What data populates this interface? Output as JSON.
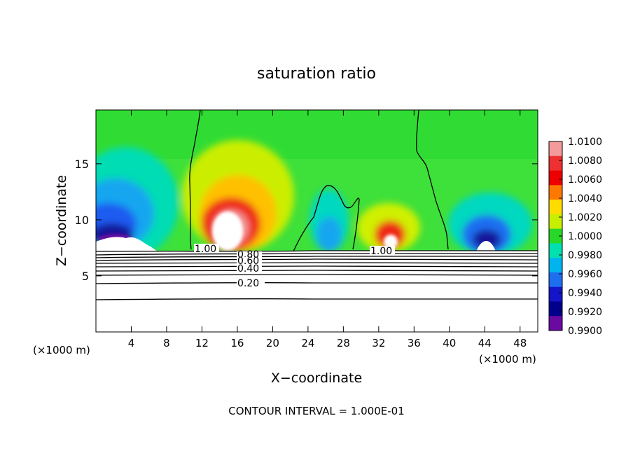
{
  "chart_data": {
    "type": "heatmap",
    "title": "saturation ratio",
    "xlabel": "X−coordinate",
    "ylabel": "Z−coordinate",
    "x_unit_left": "(×1000 m)",
    "x_unit_right": "(×1000 m)",
    "xlim": [
      0,
      50
    ],
    "ylim": [
      0,
      19.8
    ],
    "x_ticks": [
      4,
      8,
      12,
      16,
      20,
      24,
      28,
      32,
      36,
      40,
      44,
      48
    ],
    "x_ticklabels": [
      "4",
      "8",
      "12",
      "16",
      "20",
      "24",
      "28",
      "32",
      "36",
      "40",
      "44",
      "48"
    ],
    "y_ticks": [
      5,
      10,
      15
    ],
    "y_ticklabels": [
      "5",
      "10",
      "15"
    ],
    "footer": "CONTOUR INTERVAL = 1.000E-01",
    "colorbar": {
      "levels": [
        "1.0100",
        "1.0080",
        "1.0060",
        "1.0040",
        "1.0020",
        "1.0000",
        "0.9980",
        "0.9960",
        "0.9940",
        "0.9920",
        "0.9900"
      ],
      "values": [
        1.01,
        1.008,
        1.006,
        1.004,
        1.002,
        1.0,
        0.998,
        0.996,
        0.994,
        0.992,
        0.99
      ],
      "colors": [
        "#f49a9a",
        "#ee3030",
        "#ee0000",
        "#ff7800",
        "#ffdc00",
        "#c8ee00",
        "#28d828",
        "#00e0b0",
        "#00b4f0",
        "#1e6ef0",
        "#1414c8",
        "#00008c",
        "#6a0aa0"
      ]
    },
    "contour_labels": [
      {
        "text": "1.00",
        "x": 11.5,
        "z": 7.3
      },
      {
        "text": "1.00",
        "x": 30.4,
        "z": 7.2
      },
      {
        "text": "0.80",
        "x": 16.0,
        "z": 7.0
      },
      {
        "text": "0.60",
        "x": 16.0,
        "z": 6.4
      },
      {
        "text": "0.40",
        "x": 16.0,
        "z": 5.4
      },
      {
        "text": "0.20",
        "x": 16.0,
        "z": 4.1
      }
    ],
    "contour_lines_z": [
      7.3,
      6.9,
      6.6,
      6.3,
      6.0,
      5.7,
      5.4,
      4.5,
      2.8
    ]
  }
}
